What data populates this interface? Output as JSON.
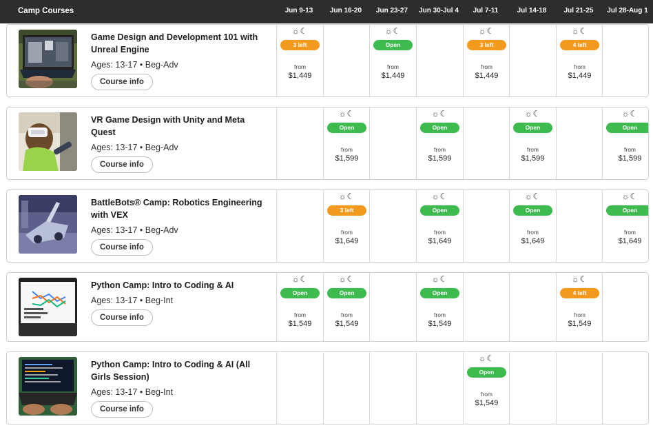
{
  "header": {
    "title": "Camp Courses",
    "weeks": [
      "Jun 9-13",
      "Jun 16-20",
      "Jun 23-27",
      "Jun 30-Jul 4",
      "Jul 7-11",
      "Jul 14-18",
      "Jul 21-25",
      "Jul 28-Aug 1"
    ]
  },
  "session_icon": "☼☾",
  "from_label": "from",
  "courses": [
    {
      "name": "Game Design and Development 101 with Unreal Engine",
      "ages": "Ages: 13-17 • Beg-Adv",
      "button": "Course info",
      "thumb": "laptop-unreal",
      "cells": [
        {
          "status": "3 left",
          "kind": "few",
          "price": "$1,449"
        },
        null,
        {
          "status": "Open",
          "kind": "open",
          "price": "$1,449"
        },
        null,
        {
          "status": "3 left",
          "kind": "few",
          "price": "$1,449"
        },
        null,
        {
          "status": "4 left",
          "kind": "few",
          "price": "$1,449"
        },
        null
      ]
    },
    {
      "name": "VR Game Design with Unity and Meta Quest",
      "ages": "Ages: 13-17 • Beg-Adv",
      "button": "Course info",
      "thumb": "vr-headset",
      "cells": [
        null,
        {
          "status": "Open",
          "kind": "open",
          "price": "$1,599"
        },
        null,
        {
          "status": "Open",
          "kind": "open",
          "price": "$1,599"
        },
        null,
        {
          "status": "Open",
          "kind": "open",
          "price": "$1,599"
        },
        null,
        {
          "status": "Open",
          "kind": "open",
          "price": "$1,599"
        }
      ]
    },
    {
      "name": "BattleBots® Camp: Robotics Engineering with VEX",
      "ages": "Ages: 13-17 • Beg-Adv",
      "button": "Course info",
      "thumb": "robot-arena",
      "cells": [
        null,
        {
          "status": "3 left",
          "kind": "few",
          "price": "$1,649"
        },
        null,
        {
          "status": "Open",
          "kind": "open",
          "price": "$1,649"
        },
        null,
        {
          "status": "Open",
          "kind": "open",
          "price": "$1,649"
        },
        null,
        {
          "status": "Open",
          "kind": "open",
          "price": "$1,649"
        }
      ]
    },
    {
      "name": "Python Camp: Intro to Coding & AI",
      "ages": "Ages: 13-17 • Beg-Int",
      "button": "Course info",
      "thumb": "python-chart",
      "cells": [
        {
          "status": "Open",
          "kind": "open",
          "price": "$1,549"
        },
        {
          "status": "Open",
          "kind": "open",
          "price": "$1,549"
        },
        null,
        {
          "status": "Open",
          "kind": "open",
          "price": "$1,549"
        },
        null,
        null,
        {
          "status": "4 left",
          "kind": "few",
          "price": "$1,549"
        },
        null
      ]
    },
    {
      "name": "Python Camp: Intro to Coding & AI (All Girls Session)",
      "ages": "Ages: 13-17 • Beg-Int",
      "button": "Course info",
      "thumb": "coding-laptop",
      "cells": [
        null,
        null,
        null,
        null,
        {
          "status": "Open",
          "kind": "open",
          "price": "$1,549"
        },
        null,
        null,
        null
      ]
    }
  ],
  "colors": {
    "header_bg": "#2d2d2d",
    "open_badge": "#3dbb4f",
    "few_left_badge": "#f39a1e",
    "border": "#cfcfcf"
  }
}
